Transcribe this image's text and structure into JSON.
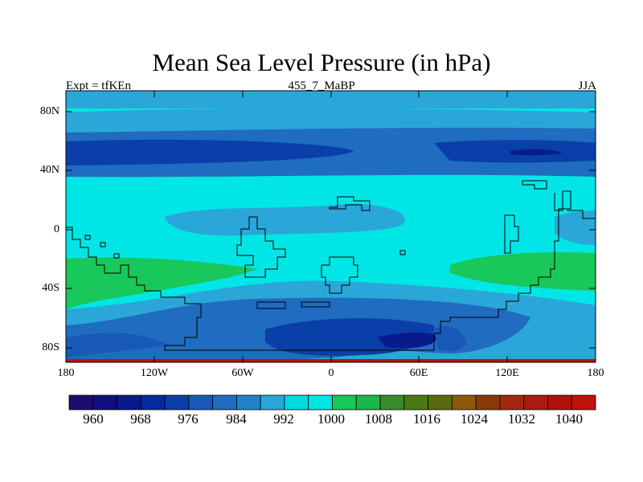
{
  "chart_data": {
    "type": "heatmap",
    "title": "Mean Sea Level Pressure (in hPa)",
    "subtitle_left": "Expt = tfKEn",
    "subtitle_center": "455_7_MaBP",
    "subtitle_right": "JJA",
    "xticks": [
      "180",
      "120W",
      "60W",
      "0",
      "60E",
      "120E",
      "180"
    ],
    "x_range": [
      -180,
      180
    ],
    "yticks": [
      "80N",
      "40N",
      "0",
      "40S",
      "80S"
    ],
    "y_range": [
      -90,
      90
    ],
    "colorbar_labels": [
      "960",
      "968",
      "976",
      "984",
      "992",
      "1000",
      "1008",
      "1016",
      "1024",
      "1032",
      "1040"
    ],
    "levels": [
      956,
      960,
      964,
      968,
      972,
      976,
      980,
      984,
      988,
      992,
      996,
      1000,
      1004,
      1008,
      1012,
      1016,
      1020,
      1024,
      1028,
      1032,
      1036,
      1040
    ],
    "colors": [
      "#1c0d6e",
      "#0f0f80",
      "#081a8c",
      "#052a99",
      "#0a3ea8",
      "#1859b8",
      "#1f6cc0",
      "#1f85c8",
      "#2aa7d8",
      "#00dcdc",
      "#00e6e6",
      "#18c85a",
      "#1ab84a",
      "#3a8c2a",
      "#4a7a14",
      "#5a6a10",
      "#8a5a0a",
      "#8a3a0a",
      "#a02a10",
      "#aa1a10",
      "#b0100a",
      "#c0100a"
    ],
    "regions_description_levels": {
      "background": 996,
      "arctic_band": 992,
      "subpolar_low_north": 984,
      "subpolar_core_north": 976,
      "tropical_band": 992,
      "subtropical_high_south": 1008,
      "southern_ocean": 980,
      "antarctic_trough": 968
    }
  }
}
